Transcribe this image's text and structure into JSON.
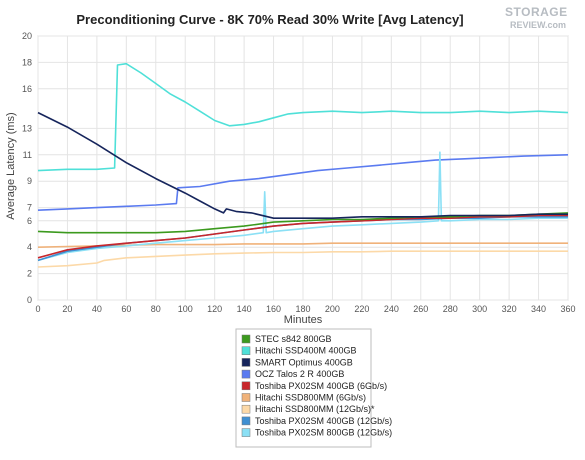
{
  "watermark": {
    "text": "STORAGE",
    "sub": "REVIEW.com"
  },
  "chart_data": {
    "type": "line",
    "title": "Preconditioning Curve - 8K 70% Read 30% Write [Avg Latency]",
    "xlabel": "Minutes",
    "ylabel": "Average Latency (ms)",
    "xlim": [
      0,
      360
    ],
    "ylim": [
      0,
      20
    ],
    "x_ticks": [
      0,
      20,
      40,
      60,
      80,
      100,
      120,
      140,
      160,
      180,
      200,
      220,
      240,
      260,
      280,
      300,
      320,
      340,
      360
    ],
    "y_ticks": [
      0,
      2,
      4,
      6,
      7,
      9,
      11,
      13,
      16,
      18,
      20
    ],
    "grid": true,
    "legend_position": "bottom",
    "series": [
      {
        "name": "STEC s842 800GB",
        "color": "#3c9a1e",
        "points": [
          [
            0,
            5.2
          ],
          [
            20,
            5.1
          ],
          [
            40,
            5.1
          ],
          [
            60,
            5.1
          ],
          [
            80,
            5.1
          ],
          [
            100,
            5.2
          ],
          [
            120,
            5.4
          ],
          [
            140,
            5.6
          ],
          [
            160,
            5.9
          ],
          [
            180,
            6.0
          ],
          [
            200,
            6.1
          ],
          [
            220,
            6.1
          ],
          [
            240,
            6.2
          ],
          [
            260,
            6.3
          ],
          [
            280,
            6.3
          ],
          [
            300,
            6.4
          ],
          [
            320,
            6.4
          ],
          [
            340,
            6.5
          ],
          [
            360,
            6.6
          ]
        ]
      },
      {
        "name": "Hitachi SSD400M 400GB",
        "color": "#4fe0d8",
        "points": [
          [
            0,
            9.8
          ],
          [
            20,
            9.9
          ],
          [
            40,
            9.9
          ],
          [
            52,
            10.0
          ],
          [
            54,
            17.8
          ],
          [
            60,
            17.9
          ],
          [
            70,
            17.2
          ],
          [
            80,
            16.4
          ],
          [
            90,
            15.6
          ],
          [
            100,
            15.0
          ],
          [
            110,
            14.3
          ],
          [
            120,
            13.6
          ],
          [
            130,
            13.2
          ],
          [
            140,
            13.3
          ],
          [
            150,
            13.5
          ],
          [
            160,
            13.8
          ],
          [
            170,
            14.1
          ],
          [
            180,
            14.2
          ],
          [
            200,
            14.3
          ],
          [
            220,
            14.2
          ],
          [
            240,
            14.3
          ],
          [
            260,
            14.2
          ],
          [
            280,
            14.2
          ],
          [
            300,
            14.3
          ],
          [
            320,
            14.2
          ],
          [
            340,
            14.3
          ],
          [
            360,
            14.2
          ]
        ]
      },
      {
        "name": "SMART Optimus 400GB",
        "color": "#16255c",
        "points": [
          [
            0,
            14.2
          ],
          [
            20,
            13.1
          ],
          [
            40,
            11.8
          ],
          [
            60,
            10.4
          ],
          [
            80,
            9.2
          ],
          [
            100,
            8.1
          ],
          [
            110,
            7.5
          ],
          [
            120,
            6.9
          ],
          [
            126,
            6.6
          ],
          [
            128,
            6.9
          ],
          [
            135,
            6.7
          ],
          [
            145,
            6.6
          ],
          [
            160,
            6.2
          ],
          [
            180,
            6.2
          ],
          [
            200,
            6.2
          ],
          [
            220,
            6.3
          ],
          [
            240,
            6.3
          ],
          [
            260,
            6.3
          ],
          [
            280,
            6.4
          ],
          [
            300,
            6.4
          ],
          [
            320,
            6.4
          ],
          [
            340,
            6.5
          ],
          [
            360,
            6.5
          ]
        ]
      },
      {
        "name": "OCZ Talos 2 R 400GB",
        "color": "#5b7bf0",
        "points": [
          [
            0,
            6.8
          ],
          [
            20,
            6.9
          ],
          [
            40,
            7.0
          ],
          [
            60,
            7.1
          ],
          [
            80,
            7.2
          ],
          [
            94,
            7.3
          ],
          [
            95,
            8.5
          ],
          [
            110,
            8.6
          ],
          [
            130,
            9.0
          ],
          [
            150,
            9.2
          ],
          [
            170,
            9.5
          ],
          [
            190,
            9.8
          ],
          [
            210,
            10.0
          ],
          [
            230,
            10.2
          ],
          [
            250,
            10.4
          ],
          [
            270,
            10.6
          ],
          [
            290,
            10.7
          ],
          [
            310,
            10.8
          ],
          [
            330,
            10.9
          ],
          [
            360,
            11.0
          ]
        ]
      },
      {
        "name": "Toshiba PX02SM 400GB (6Gb/s)",
        "color": "#c8262b",
        "points": [
          [
            0,
            3.2
          ],
          [
            20,
            3.8
          ],
          [
            40,
            4.1
          ],
          [
            60,
            4.3
          ],
          [
            80,
            4.5
          ],
          [
            100,
            4.7
          ],
          [
            120,
            5.0
          ],
          [
            140,
            5.3
          ],
          [
            160,
            5.6
          ],
          [
            180,
            5.8
          ],
          [
            200,
            5.9
          ],
          [
            220,
            6.0
          ],
          [
            240,
            6.1
          ],
          [
            260,
            6.2
          ],
          [
            280,
            6.2
          ],
          [
            300,
            6.3
          ],
          [
            320,
            6.3
          ],
          [
            340,
            6.4
          ],
          [
            360,
            6.4
          ]
        ]
      },
      {
        "name": "Hitachi SSD800MM (6Gb/s)",
        "color": "#f0b27a",
        "points": [
          [
            0,
            4.0
          ],
          [
            20,
            4.05
          ],
          [
            40,
            4.1
          ],
          [
            60,
            4.15
          ],
          [
            80,
            4.2
          ],
          [
            100,
            4.2
          ],
          [
            120,
            4.2
          ],
          [
            140,
            4.25
          ],
          [
            160,
            4.25
          ],
          [
            180,
            4.25
          ],
          [
            200,
            4.3
          ],
          [
            220,
            4.3
          ],
          [
            240,
            4.3
          ],
          [
            260,
            4.3
          ],
          [
            280,
            4.3
          ],
          [
            300,
            4.3
          ],
          [
            320,
            4.3
          ],
          [
            340,
            4.3
          ],
          [
            360,
            4.3
          ]
        ]
      },
      {
        "name": "Hitachi SSD800MM (12Gb/s)*",
        "color": "#fcd9a8",
        "points": [
          [
            0,
            2.5
          ],
          [
            20,
            2.6
          ],
          [
            40,
            2.8
          ],
          [
            45,
            3.0
          ],
          [
            60,
            3.2
          ],
          [
            80,
            3.3
          ],
          [
            100,
            3.4
          ],
          [
            120,
            3.5
          ],
          [
            140,
            3.55
          ],
          [
            160,
            3.6
          ],
          [
            180,
            3.6
          ],
          [
            200,
            3.65
          ],
          [
            220,
            3.65
          ],
          [
            240,
            3.7
          ],
          [
            260,
            3.7
          ],
          [
            280,
            3.7
          ],
          [
            300,
            3.7
          ],
          [
            320,
            3.7
          ],
          [
            340,
            3.7
          ],
          [
            360,
            3.7
          ]
        ]
      },
      {
        "name": "Toshiba PX02SM 400GB (12Gb/s)",
        "color": "#3f8fd2",
        "points": [
          [
            0,
            3.0
          ],
          [
            20,
            3.7
          ],
          [
            40,
            4.0
          ],
          [
            60,
            4.3
          ],
          [
            80,
            4.5
          ],
          [
            100,
            4.7
          ],
          [
            120,
            5.0
          ],
          [
            140,
            5.3
          ],
          [
            160,
            5.6
          ],
          [
            180,
            5.8
          ],
          [
            200,
            5.9
          ],
          [
            220,
            6.0
          ],
          [
            240,
            6.1
          ],
          [
            260,
            6.1
          ],
          [
            280,
            6.2
          ],
          [
            300,
            6.2
          ],
          [
            320,
            6.3
          ],
          [
            340,
            6.3
          ],
          [
            360,
            6.3
          ]
        ]
      },
      {
        "name": "Toshiba PX02SM 800GB (12Gb/s)",
        "color": "#8be0f5",
        "points": [
          [
            0,
            3.0
          ],
          [
            20,
            3.6
          ],
          [
            40,
            3.9
          ],
          [
            60,
            4.1
          ],
          [
            80,
            4.3
          ],
          [
            100,
            4.5
          ],
          [
            120,
            4.7
          ],
          [
            140,
            4.9
          ],
          [
            153,
            5.1
          ],
          [
            154,
            8.2
          ],
          [
            155,
            5.1
          ],
          [
            160,
            5.2
          ],
          [
            180,
            5.4
          ],
          [
            200,
            5.6
          ],
          [
            220,
            5.7
          ],
          [
            240,
            5.8
          ],
          [
            260,
            5.9
          ],
          [
            272,
            6.0
          ],
          [
            273,
            11.2
          ],
          [
            274,
            6.0
          ],
          [
            280,
            6.0
          ],
          [
            300,
            6.1
          ],
          [
            320,
            6.1
          ],
          [
            340,
            6.2
          ],
          [
            360,
            6.2
          ]
        ]
      }
    ]
  }
}
